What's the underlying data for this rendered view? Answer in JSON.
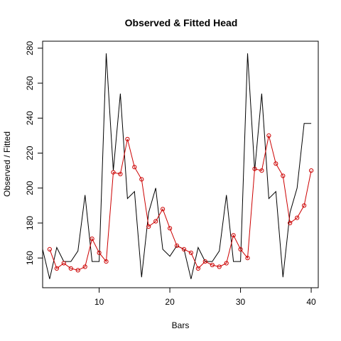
{
  "chart_data": {
    "type": "line",
    "title": "Observed & Fitted Head",
    "xlabel": "Bars",
    "ylabel": "Observed / Fitted",
    "xlim": [
      2,
      41
    ],
    "ylim": [
      143,
      284
    ],
    "x_ticks": [
      10,
      20,
      30,
      40
    ],
    "y_ticks": [
      160,
      180,
      200,
      220,
      240,
      260,
      280
    ],
    "grid": false,
    "series": [
      {
        "color": "#000000",
        "marker": "none",
        "points": [
          [
            1,
            165
          ],
          [
            2,
            165
          ],
          [
            3,
            148
          ],
          [
            4,
            166
          ],
          [
            5,
            158
          ],
          [
            6,
            158
          ],
          [
            7,
            164
          ],
          [
            8,
            196
          ],
          [
            9,
            158
          ],
          [
            10,
            158
          ],
          [
            11,
            277
          ],
          [
            12,
            210
          ],
          [
            13,
            254
          ],
          [
            14,
            194
          ],
          [
            15,
            198
          ],
          [
            16,
            149
          ],
          [
            17,
            186
          ],
          [
            18,
            200
          ],
          [
            19,
            165
          ],
          [
            20,
            161
          ],
          [
            21,
            167
          ],
          [
            22,
            165
          ],
          [
            23,
            148
          ],
          [
            24,
            166
          ],
          [
            25,
            158
          ],
          [
            26,
            158
          ],
          [
            27,
            164
          ],
          [
            28,
            196
          ],
          [
            29,
            158
          ],
          [
            30,
            158
          ],
          [
            31,
            277
          ],
          [
            32,
            210
          ],
          [
            33,
            254
          ],
          [
            34,
            194
          ],
          [
            35,
            198
          ],
          [
            36,
            149
          ],
          [
            37,
            186
          ],
          [
            38,
            200
          ],
          [
            39,
            237
          ],
          [
            40,
            237
          ]
        ]
      },
      {
        "color": "#cc0000",
        "marker": "circle",
        "points": [
          [
            3,
            165
          ],
          [
            4,
            154
          ],
          [
            5,
            157
          ],
          [
            6,
            154
          ],
          [
            7,
            153
          ],
          [
            8,
            155
          ],
          [
            9,
            171
          ],
          [
            10,
            163
          ],
          [
            11,
            158
          ],
          [
            12,
            209
          ],
          [
            13,
            208
          ],
          [
            14,
            228
          ],
          [
            15,
            212
          ],
          [
            16,
            205
          ],
          [
            17,
            178
          ],
          [
            18,
            181
          ],
          [
            19,
            188
          ],
          [
            20,
            177
          ],
          [
            21,
            167
          ],
          [
            22,
            165
          ],
          [
            23,
            163
          ],
          [
            24,
            154
          ],
          [
            25,
            158
          ],
          [
            26,
            156
          ],
          [
            27,
            155
          ],
          [
            28,
            157
          ],
          [
            29,
            173
          ],
          [
            30,
            165
          ],
          [
            31,
            160
          ],
          [
            32,
            211
          ],
          [
            33,
            210
          ],
          [
            34,
            230
          ],
          [
            35,
            214
          ],
          [
            36,
            207
          ],
          [
            37,
            180
          ],
          [
            38,
            183
          ],
          [
            39,
            190
          ],
          [
            40,
            210
          ]
        ]
      }
    ]
  }
}
